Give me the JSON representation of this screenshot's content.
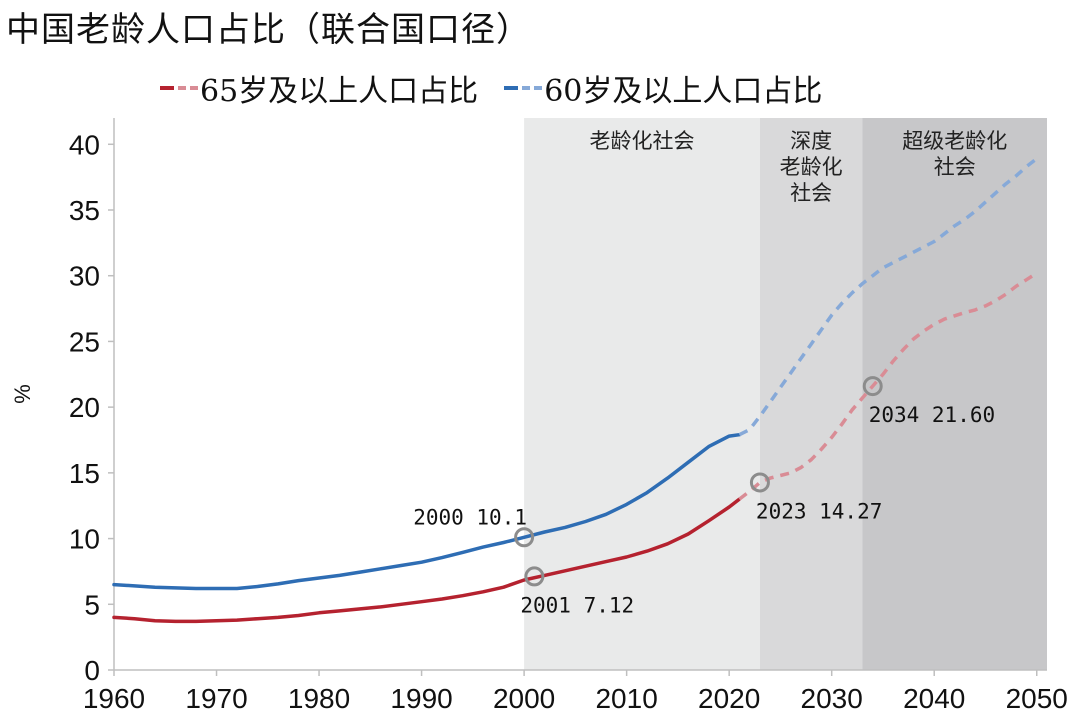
{
  "chart_data": {
    "type": "line",
    "title": "中国老龄人口占比（联合国口径）",
    "xlabel": "",
    "ylabel": "%",
    "xlim": [
      1960,
      2051
    ],
    "ylim": [
      0,
      42
    ],
    "xticks": [
      1960,
      1970,
      1980,
      1990,
      2000,
      2010,
      2020,
      2030,
      2040,
      2050
    ],
    "yticks": [
      0,
      5,
      10,
      15,
      20,
      25,
      30,
      35,
      40
    ],
    "legend_position": "top",
    "series": [
      {
        "name": "65岁及以上人口占比",
        "color": "#b5222f",
        "projection_color": "#d98c95",
        "projection_start": 2021,
        "x": [
          1960,
          1962,
          1964,
          1966,
          1968,
          1970,
          1972,
          1974,
          1976,
          1978,
          1980,
          1982,
          1984,
          1986,
          1988,
          1990,
          1992,
          1994,
          1996,
          1998,
          2000,
          2002,
          2004,
          2006,
          2008,
          2010,
          2012,
          2014,
          2016,
          2018,
          2020,
          2021,
          2022,
          2023,
          2024,
          2025,
          2026,
          2027,
          2028,
          2029,
          2030,
          2031,
          2032,
          2033,
          2034,
          2035,
          2036,
          2037,
          2038,
          2039,
          2040,
          2041,
          2042,
          2043,
          2044,
          2045,
          2046,
          2047,
          2048,
          2049,
          2050
        ],
        "values": [
          4.0,
          3.9,
          3.75,
          3.7,
          3.7,
          3.75,
          3.8,
          3.9,
          4.0,
          4.15,
          4.35,
          4.5,
          4.65,
          4.8,
          5.0,
          5.2,
          5.4,
          5.65,
          5.95,
          6.3,
          6.85,
          7.2,
          7.55,
          7.9,
          8.25,
          8.6,
          9.05,
          9.6,
          10.35,
          11.35,
          12.4,
          13.0,
          13.6,
          14.27,
          14.6,
          14.8,
          15.0,
          15.4,
          16.0,
          16.8,
          17.7,
          18.7,
          19.8,
          20.7,
          21.6,
          22.5,
          23.5,
          24.4,
          25.2,
          25.8,
          26.3,
          26.7,
          26.95,
          27.2,
          27.4,
          27.7,
          28.1,
          28.6,
          29.2,
          29.7,
          30.2
        ]
      },
      {
        "name": "60岁及以上人口占比",
        "color": "#2e6db4",
        "projection_color": "#86a9d8",
        "projection_start": 2021,
        "x": [
          1960,
          1962,
          1964,
          1966,
          1968,
          1970,
          1972,
          1974,
          1976,
          1978,
          1980,
          1982,
          1984,
          1986,
          1988,
          1990,
          1992,
          1994,
          1996,
          1998,
          2000,
          2002,
          2004,
          2006,
          2008,
          2010,
          2012,
          2014,
          2016,
          2018,
          2020,
          2021,
          2022,
          2023,
          2024,
          2025,
          2026,
          2027,
          2028,
          2029,
          2030,
          2031,
          2032,
          2033,
          2034,
          2035,
          2036,
          2037,
          2038,
          2039,
          2040,
          2041,
          2042,
          2043,
          2044,
          2045,
          2046,
          2047,
          2048,
          2049,
          2050
        ],
        "values": [
          6.5,
          6.4,
          6.3,
          6.25,
          6.2,
          6.2,
          6.2,
          6.35,
          6.55,
          6.8,
          7.0,
          7.2,
          7.45,
          7.7,
          7.95,
          8.2,
          8.55,
          8.95,
          9.35,
          9.7,
          10.1,
          10.5,
          10.85,
          11.3,
          11.85,
          12.6,
          13.5,
          14.6,
          15.8,
          17.0,
          17.8,
          17.9,
          18.3,
          19.3,
          20.4,
          21.5,
          22.6,
          23.7,
          24.8,
          25.9,
          27.0,
          27.9,
          28.7,
          29.4,
          30.0,
          30.6,
          31.0,
          31.4,
          31.8,
          32.2,
          32.6,
          33.2,
          33.8,
          34.3,
          34.9,
          35.6,
          36.3,
          37.0,
          37.6,
          38.3,
          38.9
        ]
      }
    ],
    "shaded_regions": [
      {
        "x0": 2000,
        "x1": 2023,
        "label": "老龄化社会",
        "color": "#e9eaea"
      },
      {
        "x0": 2023,
        "x1": 2033,
        "label": "深度\n老龄化\n社会",
        "color": "#d9d9da"
      },
      {
        "x0": 2033,
        "x1": 2051,
        "label": "超级老龄化\n社会",
        "color": "#c7c7c9"
      }
    ],
    "annotations": [
      {
        "year": 2000,
        "value": 10.1,
        "label": "2000  10.1",
        "anchor": "upper-left"
      },
      {
        "year": 2001,
        "value": 7.12,
        "label": "2001  7.12",
        "anchor": "below-left"
      },
      {
        "year": 2023,
        "value": 14.27,
        "label": "2023  14.27",
        "anchor": "below-right"
      },
      {
        "year": 2034,
        "value": 21.6,
        "label": "2034  21.60",
        "anchor": "below-right"
      }
    ]
  }
}
